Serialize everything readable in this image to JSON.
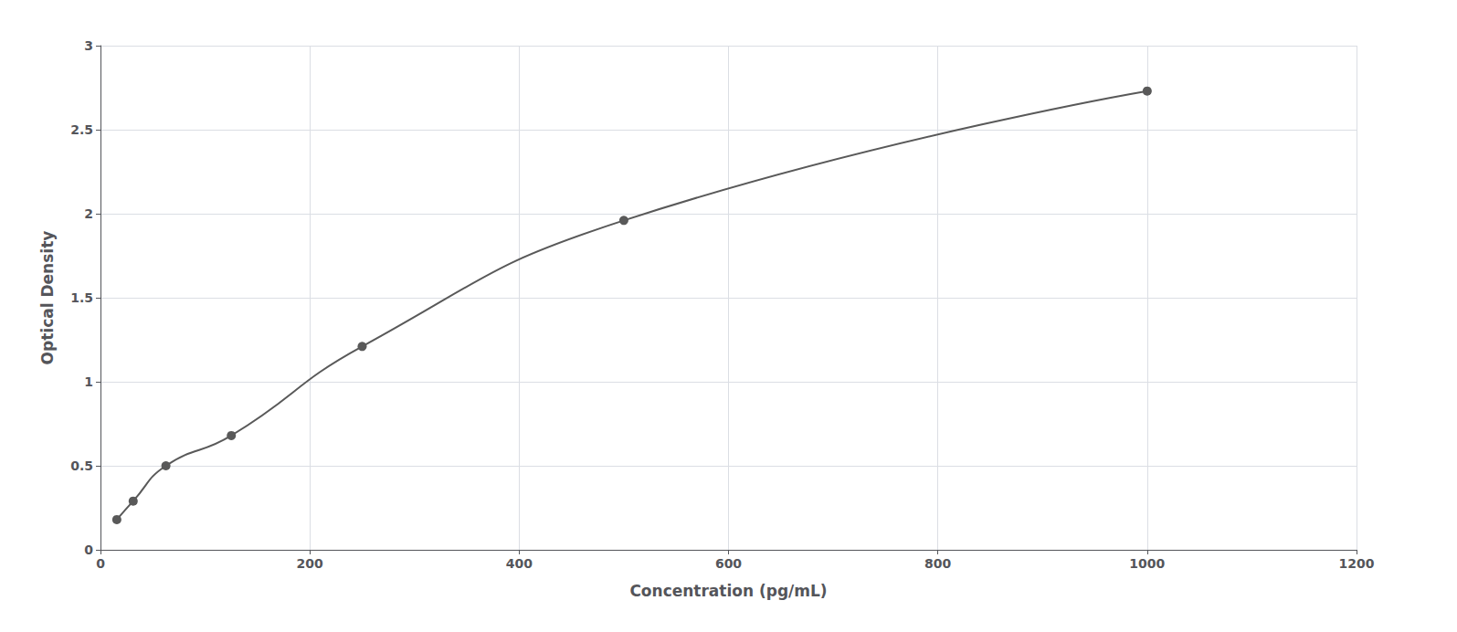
{
  "chart_data": {
    "type": "line",
    "x": [
      15.6,
      31.25,
      62.5,
      125,
      250,
      500,
      1000
    ],
    "values": [
      0.18,
      0.29,
      0.5,
      0.68,
      1.21,
      1.96,
      2.73
    ],
    "xlabel": "Concentration (pg/mL)",
    "ylabel": "Optical Density",
    "color": "#595959",
    "marker": "circle",
    "xlim": [
      0,
      1200
    ],
    "ylim": [
      0,
      3
    ],
    "xticks": [
      0,
      200,
      400,
      600,
      800,
      1000,
      1200
    ],
    "yticks": [
      0,
      0.5,
      1,
      1.5,
      2,
      2.5,
      3
    ],
    "grid": true
  }
}
